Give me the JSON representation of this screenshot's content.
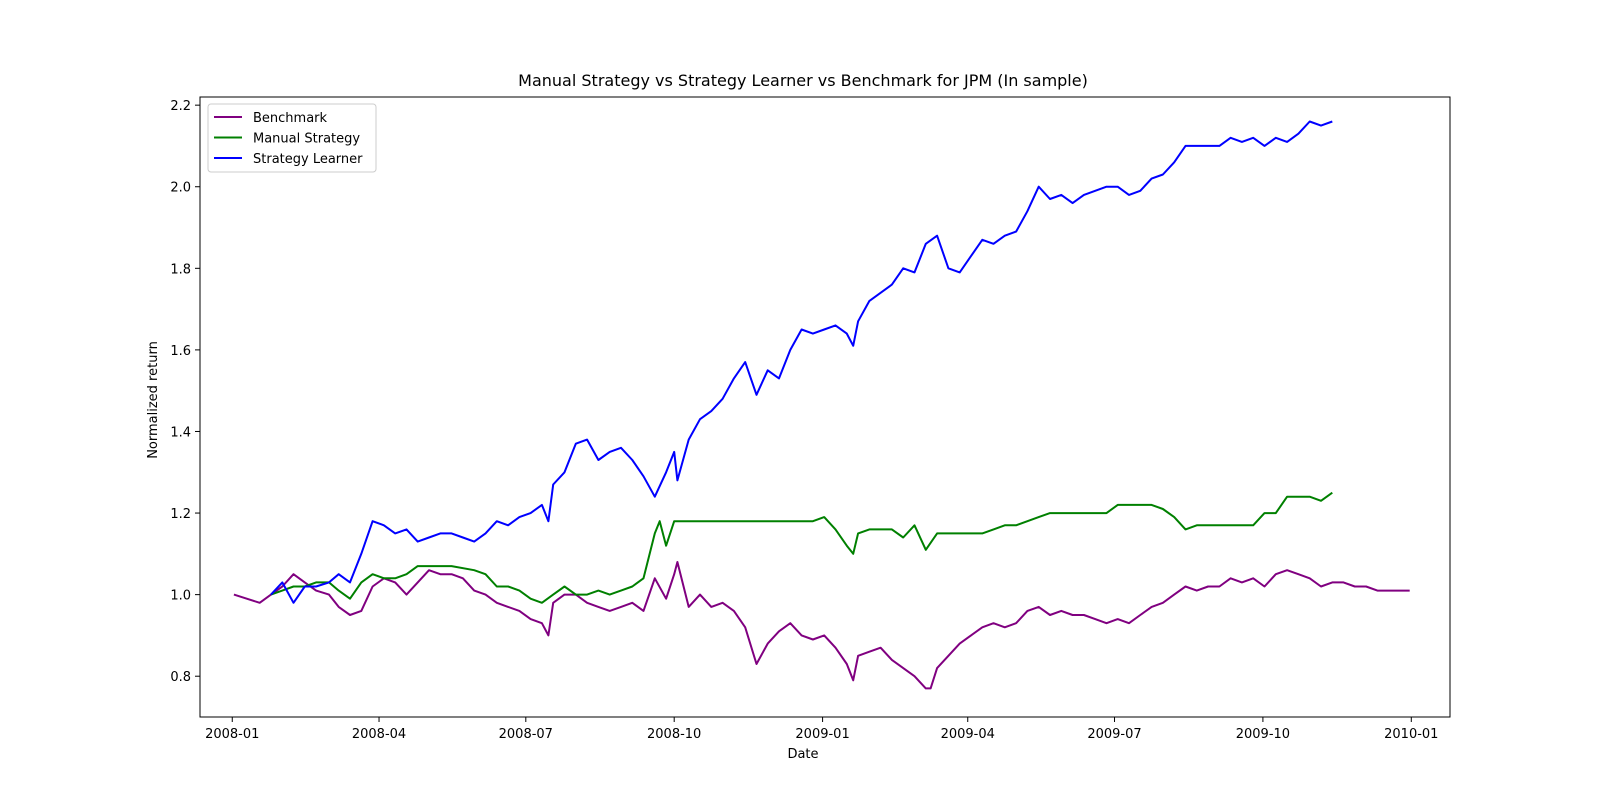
{
  "chart_data": {
    "type": "line",
    "title": "Manual Strategy vs Strategy Learner vs Benchmark for JPM (In sample)",
    "xlabel": "Date",
    "ylabel": "Normalized return",
    "x_scale": "date",
    "xlim": [
      "2007-12-12",
      "2010-01-25"
    ],
    "ylim": [
      0.7,
      2.22
    ],
    "x_ticks": [
      "2008-01",
      "2008-04",
      "2008-07",
      "2008-10",
      "2009-01",
      "2009-04",
      "2009-07",
      "2009-10",
      "2010-01"
    ],
    "y_ticks": [
      "0.8",
      "1.0",
      "1.2",
      "1.4",
      "1.6",
      "1.8",
      "2.0",
      "2.2"
    ],
    "grid": false,
    "legend_position": "top-left",
    "series": [
      {
        "name": "Benchmark",
        "color": "#800080",
        "points": [
          [
            "2008-01-02",
            1.0
          ],
          [
            "2008-01-10",
            0.99
          ],
          [
            "2008-01-18",
            0.98
          ],
          [
            "2008-01-25",
            1.0
          ],
          [
            "2008-02-01",
            1.02
          ],
          [
            "2008-02-08",
            1.05
          ],
          [
            "2008-02-15",
            1.03
          ],
          [
            "2008-02-22",
            1.01
          ],
          [
            "2008-03-01",
            1.0
          ],
          [
            "2008-03-07",
            0.97
          ],
          [
            "2008-03-14",
            0.95
          ],
          [
            "2008-03-21",
            0.96
          ],
          [
            "2008-03-28",
            1.02
          ],
          [
            "2008-04-04",
            1.04
          ],
          [
            "2008-04-11",
            1.03
          ],
          [
            "2008-04-18",
            1.0
          ],
          [
            "2008-04-25",
            1.03
          ],
          [
            "2008-05-02",
            1.06
          ],
          [
            "2008-05-09",
            1.05
          ],
          [
            "2008-05-16",
            1.05
          ],
          [
            "2008-05-23",
            1.04
          ],
          [
            "2008-05-30",
            1.01
          ],
          [
            "2008-06-06",
            1.0
          ],
          [
            "2008-06-13",
            0.98
          ],
          [
            "2008-06-20",
            0.97
          ],
          [
            "2008-06-27",
            0.96
          ],
          [
            "2008-07-04",
            0.94
          ],
          [
            "2008-07-11",
            0.93
          ],
          [
            "2008-07-15",
            0.9
          ],
          [
            "2008-07-18",
            0.98
          ],
          [
            "2008-07-25",
            1.0
          ],
          [
            "2008-08-01",
            1.0
          ],
          [
            "2008-08-08",
            0.98
          ],
          [
            "2008-08-15",
            0.97
          ],
          [
            "2008-08-22",
            0.96
          ],
          [
            "2008-08-29",
            0.97
          ],
          [
            "2008-09-05",
            0.98
          ],
          [
            "2008-09-12",
            0.96
          ],
          [
            "2008-09-19",
            1.04
          ],
          [
            "2008-09-26",
            0.99
          ],
          [
            "2008-10-01",
            1.05
          ],
          [
            "2008-10-03",
            1.08
          ],
          [
            "2008-10-10",
            0.97
          ],
          [
            "2008-10-17",
            1.0
          ],
          [
            "2008-10-24",
            0.97
          ],
          [
            "2008-10-31",
            0.98
          ],
          [
            "2008-11-07",
            0.96
          ],
          [
            "2008-11-14",
            0.92
          ],
          [
            "2008-11-21",
            0.83
          ],
          [
            "2008-11-28",
            0.88
          ],
          [
            "2008-12-05",
            0.91
          ],
          [
            "2008-12-12",
            0.93
          ],
          [
            "2008-12-19",
            0.9
          ],
          [
            "2008-12-26",
            0.89
          ],
          [
            "2009-01-02",
            0.9
          ],
          [
            "2009-01-09",
            0.87
          ],
          [
            "2009-01-16",
            0.83
          ],
          [
            "2009-01-20",
            0.79
          ],
          [
            "2009-01-23",
            0.85
          ],
          [
            "2009-01-30",
            0.86
          ],
          [
            "2009-02-06",
            0.87
          ],
          [
            "2009-02-13",
            0.84
          ],
          [
            "2009-02-20",
            0.82
          ],
          [
            "2009-02-27",
            0.8
          ],
          [
            "2009-03-06",
            0.77
          ],
          [
            "2009-03-09",
            0.77
          ],
          [
            "2009-03-13",
            0.82
          ],
          [
            "2009-03-20",
            0.85
          ],
          [
            "2009-03-27",
            0.88
          ],
          [
            "2009-04-03",
            0.9
          ],
          [
            "2009-04-10",
            0.92
          ],
          [
            "2009-04-17",
            0.93
          ],
          [
            "2009-04-24",
            0.92
          ],
          [
            "2009-05-01",
            0.93
          ],
          [
            "2009-05-08",
            0.96
          ],
          [
            "2009-05-15",
            0.97
          ],
          [
            "2009-05-22",
            0.95
          ],
          [
            "2009-05-29",
            0.96
          ],
          [
            "2009-06-05",
            0.95
          ],
          [
            "2009-06-12",
            0.95
          ],
          [
            "2009-06-19",
            0.94
          ],
          [
            "2009-06-26",
            0.93
          ],
          [
            "2009-07-03",
            0.94
          ],
          [
            "2009-07-10",
            0.93
          ],
          [
            "2009-07-17",
            0.95
          ],
          [
            "2009-07-24",
            0.97
          ],
          [
            "2009-07-31",
            0.98
          ],
          [
            "2009-08-07",
            1.0
          ],
          [
            "2009-08-14",
            1.02
          ],
          [
            "2009-08-21",
            1.01
          ],
          [
            "2009-08-28",
            1.02
          ],
          [
            "2009-09-04",
            1.02
          ],
          [
            "2009-09-11",
            1.04
          ],
          [
            "2009-09-18",
            1.03
          ],
          [
            "2009-09-25",
            1.04
          ],
          [
            "2009-10-02",
            1.02
          ],
          [
            "2009-10-09",
            1.05
          ],
          [
            "2009-10-16",
            1.06
          ],
          [
            "2009-10-23",
            1.05
          ],
          [
            "2009-10-30",
            1.04
          ],
          [
            "2009-11-06",
            1.02
          ],
          [
            "2009-11-13",
            1.03
          ],
          [
            "2009-11-20",
            1.03
          ],
          [
            "2009-11-27",
            1.02
          ],
          [
            "2009-12-04",
            1.02
          ],
          [
            "2009-12-11",
            1.01
          ],
          [
            "2009-12-18",
            1.01
          ],
          [
            "2009-12-24",
            1.01
          ],
          [
            "2009-12-31",
            1.01
          ]
        ]
      },
      {
        "name": "Manual Strategy",
        "color": "#008000",
        "points": [
          [
            "2008-01-25",
            1.0
          ],
          [
            "2008-02-01",
            1.01
          ],
          [
            "2008-02-08",
            1.02
          ],
          [
            "2008-02-15",
            1.02
          ],
          [
            "2008-02-22",
            1.03
          ],
          [
            "2008-03-01",
            1.03
          ],
          [
            "2008-03-07",
            1.01
          ],
          [
            "2008-03-14",
            0.99
          ],
          [
            "2008-03-21",
            1.03
          ],
          [
            "2008-03-28",
            1.05
          ],
          [
            "2008-04-04",
            1.04
          ],
          [
            "2008-04-11",
            1.04
          ],
          [
            "2008-04-18",
            1.05
          ],
          [
            "2008-04-25",
            1.07
          ],
          [
            "2008-05-02",
            1.07
          ],
          [
            "2008-05-16",
            1.07
          ],
          [
            "2008-05-30",
            1.06
          ],
          [
            "2008-06-06",
            1.05
          ],
          [
            "2008-06-13",
            1.02
          ],
          [
            "2008-06-20",
            1.02
          ],
          [
            "2008-06-27",
            1.01
          ],
          [
            "2008-07-04",
            0.99
          ],
          [
            "2008-07-11",
            0.98
          ],
          [
            "2008-07-18",
            1.0
          ],
          [
            "2008-07-25",
            1.02
          ],
          [
            "2008-08-01",
            1.0
          ],
          [
            "2008-08-08",
            1.0
          ],
          [
            "2008-08-15",
            1.01
          ],
          [
            "2008-08-22",
            1.0
          ],
          [
            "2008-08-29",
            1.01
          ],
          [
            "2008-09-05",
            1.02
          ],
          [
            "2008-09-12",
            1.04
          ],
          [
            "2008-09-19",
            1.15
          ],
          [
            "2008-09-22",
            1.18
          ],
          [
            "2008-09-26",
            1.12
          ],
          [
            "2008-10-01",
            1.18
          ],
          [
            "2008-11-01",
            1.18
          ],
          [
            "2008-12-01",
            1.18
          ],
          [
            "2008-12-26",
            1.18
          ],
          [
            "2009-01-02",
            1.19
          ],
          [
            "2009-01-09",
            1.16
          ],
          [
            "2009-01-16",
            1.12
          ],
          [
            "2009-01-20",
            1.1
          ],
          [
            "2009-01-23",
            1.15
          ],
          [
            "2009-01-30",
            1.16
          ],
          [
            "2009-02-13",
            1.16
          ],
          [
            "2009-02-20",
            1.14
          ],
          [
            "2009-02-27",
            1.17
          ],
          [
            "2009-03-06",
            1.11
          ],
          [
            "2009-03-13",
            1.15
          ],
          [
            "2009-04-01",
            1.15
          ],
          [
            "2009-04-10",
            1.15
          ],
          [
            "2009-04-17",
            1.16
          ],
          [
            "2009-04-24",
            1.17
          ],
          [
            "2009-05-01",
            1.17
          ],
          [
            "2009-05-08",
            1.18
          ],
          [
            "2009-05-15",
            1.19
          ],
          [
            "2009-05-22",
            1.2
          ],
          [
            "2009-06-26",
            1.2
          ],
          [
            "2009-07-03",
            1.22
          ],
          [
            "2009-07-24",
            1.22
          ],
          [
            "2009-07-31",
            1.21
          ],
          [
            "2009-08-07",
            1.19
          ],
          [
            "2009-08-14",
            1.16
          ],
          [
            "2009-08-21",
            1.17
          ],
          [
            "2009-09-25",
            1.17
          ],
          [
            "2009-10-02",
            1.2
          ],
          [
            "2009-10-09",
            1.2
          ],
          [
            "2009-10-16",
            1.24
          ],
          [
            "2009-10-30",
            1.24
          ],
          [
            "2009-11-06",
            1.23
          ],
          [
            "2009-11-13",
            1.25
          ]
        ]
      },
      {
        "name": "Strategy Learner",
        "color": "#0000ff",
        "points": [
          [
            "2008-01-25",
            1.0
          ],
          [
            "2008-02-01",
            1.03
          ],
          [
            "2008-02-08",
            0.98
          ],
          [
            "2008-02-15",
            1.02
          ],
          [
            "2008-02-22",
            1.02
          ],
          [
            "2008-03-01",
            1.03
          ],
          [
            "2008-03-07",
            1.05
          ],
          [
            "2008-03-14",
            1.03
          ],
          [
            "2008-03-21",
            1.1
          ],
          [
            "2008-03-28",
            1.18
          ],
          [
            "2008-04-04",
            1.17
          ],
          [
            "2008-04-11",
            1.15
          ],
          [
            "2008-04-18",
            1.16
          ],
          [
            "2008-04-25",
            1.13
          ],
          [
            "2008-05-02",
            1.14
          ],
          [
            "2008-05-09",
            1.15
          ],
          [
            "2008-05-16",
            1.15
          ],
          [
            "2008-05-23",
            1.14
          ],
          [
            "2008-05-30",
            1.13
          ],
          [
            "2008-06-06",
            1.15
          ],
          [
            "2008-06-13",
            1.18
          ],
          [
            "2008-06-20",
            1.17
          ],
          [
            "2008-06-27",
            1.19
          ],
          [
            "2008-07-04",
            1.2
          ],
          [
            "2008-07-11",
            1.22
          ],
          [
            "2008-07-15",
            1.18
          ],
          [
            "2008-07-18",
            1.27
          ],
          [
            "2008-07-25",
            1.3
          ],
          [
            "2008-08-01",
            1.37
          ],
          [
            "2008-08-08",
            1.38
          ],
          [
            "2008-08-15",
            1.33
          ],
          [
            "2008-08-22",
            1.35
          ],
          [
            "2008-08-29",
            1.36
          ],
          [
            "2008-09-05",
            1.33
          ],
          [
            "2008-09-12",
            1.29
          ],
          [
            "2008-09-19",
            1.24
          ],
          [
            "2008-09-26",
            1.3
          ],
          [
            "2008-10-01",
            1.35
          ],
          [
            "2008-10-03",
            1.28
          ],
          [
            "2008-10-10",
            1.38
          ],
          [
            "2008-10-17",
            1.43
          ],
          [
            "2008-10-24",
            1.45
          ],
          [
            "2008-10-31",
            1.48
          ],
          [
            "2008-11-07",
            1.53
          ],
          [
            "2008-11-14",
            1.57
          ],
          [
            "2008-11-21",
            1.49
          ],
          [
            "2008-11-28",
            1.55
          ],
          [
            "2008-12-05",
            1.53
          ],
          [
            "2008-12-12",
            1.6
          ],
          [
            "2008-12-19",
            1.65
          ],
          [
            "2008-12-26",
            1.64
          ],
          [
            "2009-01-02",
            1.65
          ],
          [
            "2009-01-09",
            1.66
          ],
          [
            "2009-01-16",
            1.64
          ],
          [
            "2009-01-20",
            1.61
          ],
          [
            "2009-01-23",
            1.67
          ],
          [
            "2009-01-30",
            1.72
          ],
          [
            "2009-02-06",
            1.74
          ],
          [
            "2009-02-13",
            1.76
          ],
          [
            "2009-02-20",
            1.8
          ],
          [
            "2009-02-27",
            1.79
          ],
          [
            "2009-03-06",
            1.86
          ],
          [
            "2009-03-13",
            1.88
          ],
          [
            "2009-03-20",
            1.8
          ],
          [
            "2009-03-27",
            1.79
          ],
          [
            "2009-04-03",
            1.83
          ],
          [
            "2009-04-10",
            1.87
          ],
          [
            "2009-04-17",
            1.86
          ],
          [
            "2009-04-24",
            1.88
          ],
          [
            "2009-05-01",
            1.89
          ],
          [
            "2009-05-08",
            1.94
          ],
          [
            "2009-05-15",
            2.0
          ],
          [
            "2009-05-22",
            1.97
          ],
          [
            "2009-05-29",
            1.98
          ],
          [
            "2009-06-05",
            1.96
          ],
          [
            "2009-06-12",
            1.98
          ],
          [
            "2009-06-19",
            1.99
          ],
          [
            "2009-06-26",
            2.0
          ],
          [
            "2009-07-03",
            2.0
          ],
          [
            "2009-07-10",
            1.98
          ],
          [
            "2009-07-17",
            1.99
          ],
          [
            "2009-07-24",
            2.02
          ],
          [
            "2009-07-31",
            2.03
          ],
          [
            "2009-08-07",
            2.06
          ],
          [
            "2009-08-14",
            2.1
          ],
          [
            "2009-08-21",
            2.1
          ],
          [
            "2009-08-28",
            2.1
          ],
          [
            "2009-09-04",
            2.1
          ],
          [
            "2009-09-11",
            2.12
          ],
          [
            "2009-09-18",
            2.11
          ],
          [
            "2009-09-25",
            2.12
          ],
          [
            "2009-10-02",
            2.1
          ],
          [
            "2009-10-09",
            2.12
          ],
          [
            "2009-10-16",
            2.11
          ],
          [
            "2009-10-23",
            2.13
          ],
          [
            "2009-10-30",
            2.16
          ],
          [
            "2009-11-06",
            2.15
          ],
          [
            "2009-11-13",
            2.16
          ]
        ]
      }
    ]
  }
}
